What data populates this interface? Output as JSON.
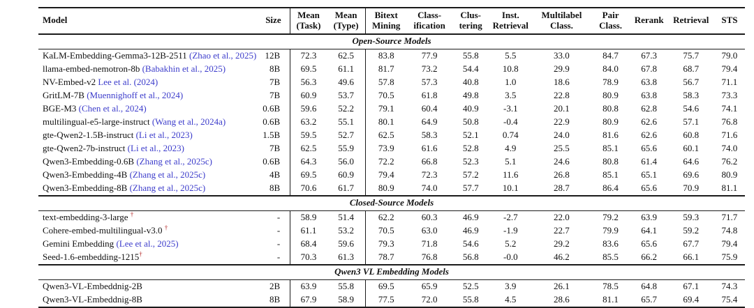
{
  "colors": {
    "citation_link": "#3c3ccb",
    "dagger_mark": "#b22222",
    "rule": "#1a1a1a"
  },
  "table": {
    "columns": [
      {
        "id": "model",
        "line1": "Model",
        "line2": ""
      },
      {
        "id": "size",
        "line1": "Size",
        "line2": ""
      },
      {
        "id": "mean-task",
        "line1": "Mean",
        "line2": "(Task)"
      },
      {
        "id": "mean-type",
        "line1": "Mean",
        "line2": "(Type)"
      },
      {
        "id": "bitext-mining",
        "line1": "Bitext",
        "line2": "Mining"
      },
      {
        "id": "classification",
        "line1": "Class-",
        "line2": "ification"
      },
      {
        "id": "clustering",
        "line1": "Clus-",
        "line2": "tering"
      },
      {
        "id": "inst-retrieval",
        "line1": "Inst.",
        "line2": "Retrieval"
      },
      {
        "id": "multilabel-class",
        "line1": "Multilabel",
        "line2": "Class."
      },
      {
        "id": "pair-class",
        "line1": "Pair",
        "line2": "Class."
      },
      {
        "id": "rerank",
        "line1": "Rerank",
        "line2": ""
      },
      {
        "id": "retrieval",
        "line1": "Retrieval",
        "line2": ""
      },
      {
        "id": "sts",
        "line1": "STS",
        "line2": ""
      }
    ],
    "sections": [
      {
        "title": "Open-Source Models",
        "rows": [
          {
            "model": "KaLM-Embedding-Gemma3-12B-2511",
            "cite": "(Zhao et al., 2025)",
            "dagger": false,
            "size": "12B",
            "scores": [
              "72.3",
              "62.5",
              "83.8",
              "77.9",
              "55.8",
              "5.5",
              "33.0",
              "84.7",
              "67.3",
              "75.7",
              "79.0"
            ]
          },
          {
            "model": "llama-embed-nemotron-8b",
            "cite": "(Babakhin et al., 2025)",
            "dagger": false,
            "size": "8B",
            "scores": [
              "69.5",
              "61.1",
              "81.7",
              "73.2",
              "54.4",
              "10.8",
              "29.9",
              "84.0",
              "67.8",
              "68.7",
              "79.4"
            ]
          },
          {
            "model": "NV-Embed-v2",
            "cite": "Lee et al. (2024)",
            "dagger": false,
            "size": "7B",
            "scores": [
              "56.3",
              "49.6",
              "57.8",
              "57.3",
              "40.8",
              "1.0",
              "18.6",
              "78.9",
              "63.8",
              "56.7",
              "71.1"
            ]
          },
          {
            "model": "GritLM-7B",
            "cite": "(Muennighoff et al., 2024)",
            "dagger": false,
            "size": "7B",
            "scores": [
              "60.9",
              "53.7",
              "70.5",
              "61.8",
              "49.8",
              "3.5",
              "22.8",
              "80.9",
              "63.8",
              "58.3",
              "73.3"
            ]
          },
          {
            "model": "BGE-M3",
            "cite": "(Chen et al., 2024)",
            "dagger": false,
            "size": "0.6B",
            "scores": [
              "59.6",
              "52.2",
              "79.1",
              "60.4",
              "40.9",
              "-3.1",
              "20.1",
              "80.8",
              "62.8",
              "54.6",
              "74.1"
            ]
          },
          {
            "model": "multilingual-e5-large-instruct",
            "cite": "(Wang et al., 2024a)",
            "dagger": false,
            "size": "0.6B",
            "scores": [
              "63.2",
              "55.1",
              "80.1",
              "64.9",
              "50.8",
              "-0.4",
              "22.9",
              "80.9",
              "62.6",
              "57.1",
              "76.8"
            ]
          },
          {
            "model": "gte-Qwen2-1.5B-instruct",
            "cite": "(Li et al., 2023)",
            "dagger": false,
            "size": "1.5B",
            "scores": [
              "59.5",
              "52.7",
              "62.5",
              "58.3",
              "52.1",
              "0.74",
              "24.0",
              "81.6",
              "62.6",
              "60.8",
              "71.6"
            ]
          },
          {
            "model": "gte-Qwen2-7b-instruct",
            "cite": "(Li et al., 2023)",
            "dagger": false,
            "size": "7B",
            "scores": [
              "62.5",
              "55.9",
              "73.9",
              "61.6",
              "52.8",
              "4.9",
              "25.5",
              "85.1",
              "65.6",
              "60.1",
              "74.0"
            ]
          },
          {
            "model": "Qwen3-Embedding-0.6B",
            "cite": "(Zhang et al., 2025c)",
            "dagger": false,
            "size": "0.6B",
            "scores": [
              "64.3",
              "56.0",
              "72.2",
              "66.8",
              "52.3",
              "5.1",
              "24.6",
              "80.8",
              "61.4",
              "64.6",
              "76.2"
            ]
          },
          {
            "model": "Qwen3-Embedding-4B",
            "cite": "(Zhang et al., 2025c)",
            "dagger": false,
            "size": "4B",
            "scores": [
              "69.5",
              "60.9",
              "79.4",
              "72.3",
              "57.2",
              "11.6",
              "26.8",
              "85.1",
              "65.1",
              "69.6",
              "80.9"
            ]
          },
          {
            "model": "Qwen3-Embedding-8B",
            "cite": "(Zhang et al., 2025c)",
            "dagger": false,
            "size": "8B",
            "scores": [
              "70.6",
              "61.7",
              "80.9",
              "74.0",
              "57.7",
              "10.1",
              "28.7",
              "86.4",
              "65.6",
              "70.9",
              "81.1"
            ]
          }
        ]
      },
      {
        "title": "Closed-Source Models",
        "rows": [
          {
            "model": "text-embedding-3-large ",
            "cite": "",
            "dagger": true,
            "size": "-",
            "scores": [
              "58.9",
              "51.4",
              "62.2",
              "60.3",
              "46.9",
              "-2.7",
              "22.0",
              "79.2",
              "63.9",
              "59.3",
              "71.7"
            ]
          },
          {
            "model": "Cohere-embed-multilingual-v3.0 ",
            "cite": "",
            "dagger": true,
            "size": "-",
            "scores": [
              "61.1",
              "53.2",
              "70.5",
              "63.0",
              "46.9",
              "-1.9",
              "22.7",
              "79.9",
              "64.1",
              "59.2",
              "74.8"
            ]
          },
          {
            "model": "Gemini Embedding",
            "cite": "(Lee et al., 2025)",
            "dagger": false,
            "size": "-",
            "scores": [
              "68.4",
              "59.6",
              "79.3",
              "71.8",
              "54.6",
              "5.2",
              "29.2",
              "83.6",
              "65.6",
              "67.7",
              "79.4"
            ]
          },
          {
            "model": "Seed-1.6-embedding-1215",
            "cite": "",
            "dagger": true,
            "size": "-",
            "scores": [
              "70.3",
              "61.3",
              "78.7",
              "76.8",
              "56.8",
              "-0.0",
              "46.2",
              "85.5",
              "66.2",
              "66.1",
              "75.9"
            ]
          }
        ]
      },
      {
        "title": "Qwen3 VL Embedding Models",
        "rows": [
          {
            "model": "Qwen3-VL-Embeddnig-2B",
            "cite": "",
            "dagger": false,
            "size": "2B",
            "scores": [
              "63.9",
              "55.8",
              "69.5",
              "65.9",
              "52.5",
              "3.9",
              "26.1",
              "78.5",
              "64.8",
              "67.1",
              "74.3"
            ]
          },
          {
            "model": "Qwen3-VL-Embeddnig-8B",
            "cite": "",
            "dagger": false,
            "size": "8B",
            "scores": [
              "67.9",
              "58.9",
              "77.5",
              "72.0",
              "55.8",
              "4.5",
              "28.6",
              "81.1",
              "65.7",
              "69.4",
              "75.4"
            ]
          }
        ]
      }
    ]
  }
}
